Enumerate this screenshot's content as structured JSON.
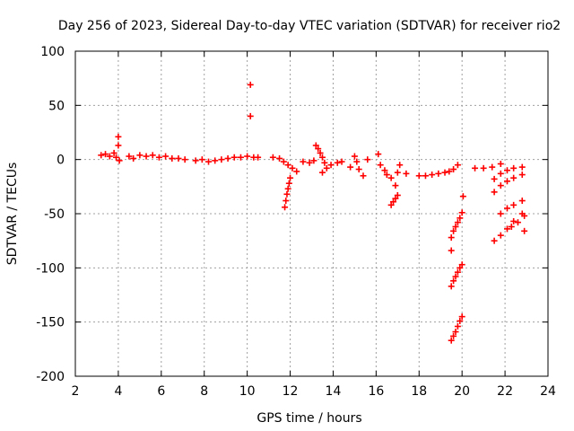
{
  "chart_data": {
    "type": "scatter",
    "title": "Day 256 of 2023, Sidereal Day-to-day VTEC variation (SDTVAR) for receiver rio2",
    "xlabel": "GPS time / hours",
    "ylabel": "SDTVAR / TECUs",
    "xlim": [
      2,
      24
    ],
    "ylim": [
      -200,
      100
    ],
    "xticks": [
      2,
      4,
      6,
      8,
      10,
      12,
      14,
      16,
      18,
      20,
      22,
      24
    ],
    "yticks": [
      100,
      50,
      0,
      -50,
      -100,
      -150,
      -200
    ],
    "grid": true,
    "marker": "+",
    "color": "#ff0000",
    "points": [
      [
        3.2,
        4
      ],
      [
        3.4,
        5
      ],
      [
        3.6,
        3
      ],
      [
        3.8,
        6
      ],
      [
        3.9,
        2
      ],
      [
        4.0,
        21
      ],
      [
        4.0,
        13
      ],
      [
        4.05,
        -1
      ],
      [
        4.5,
        3
      ],
      [
        4.7,
        1
      ],
      [
        5.0,
        4
      ],
      [
        5.3,
        3
      ],
      [
        5.6,
        4
      ],
      [
        5.9,
        2
      ],
      [
        6.2,
        3
      ],
      [
        6.5,
        1
      ],
      [
        6.8,
        1
      ],
      [
        7.1,
        0
      ],
      [
        7.6,
        -1
      ],
      [
        7.9,
        0
      ],
      [
        8.2,
        -2
      ],
      [
        8.5,
        -1
      ],
      [
        8.8,
        0
      ],
      [
        9.1,
        1
      ],
      [
        9.4,
        2
      ],
      [
        9.7,
        2
      ],
      [
        10.0,
        3
      ],
      [
        10.3,
        2
      ],
      [
        10.5,
        2
      ],
      [
        10.15,
        69
      ],
      [
        10.15,
        40
      ],
      [
        11.2,
        2
      ],
      [
        11.5,
        1
      ],
      [
        11.7,
        -2
      ],
      [
        11.9,
        -5
      ],
      [
        12.1,
        -8
      ],
      [
        12.3,
        -11
      ],
      [
        11.75,
        -44
      ],
      [
        11.8,
        -38
      ],
      [
        11.85,
        -32
      ],
      [
        11.9,
        -27
      ],
      [
        11.95,
        -22
      ],
      [
        12.0,
        -17
      ],
      [
        12.6,
        -2
      ],
      [
        12.9,
        -3
      ],
      [
        13.1,
        -1
      ],
      [
        13.2,
        13
      ],
      [
        13.3,
        10
      ],
      [
        13.4,
        6
      ],
      [
        13.5,
        2
      ],
      [
        13.6,
        -3
      ],
      [
        13.5,
        -12
      ],
      [
        13.7,
        -8
      ],
      [
        13.9,
        -5
      ],
      [
        14.2,
        -3
      ],
      [
        14.4,
        -2
      ],
      [
        14.8,
        -7
      ],
      [
        15.0,
        3
      ],
      [
        15.1,
        -2
      ],
      [
        15.2,
        -9
      ],
      [
        15.4,
        -15
      ],
      [
        15.6,
        0
      ],
      [
        16.1,
        5
      ],
      [
        16.2,
        -5
      ],
      [
        16.4,
        -10
      ],
      [
        16.5,
        -14
      ],
      [
        16.7,
        -17
      ],
      [
        16.9,
        -24
      ],
      [
        17.0,
        -12
      ],
      [
        17.1,
        -5
      ],
      [
        16.7,
        -42
      ],
      [
        16.8,
        -39
      ],
      [
        16.9,
        -36
      ],
      [
        17.0,
        -33
      ],
      [
        17.4,
        -13
      ],
      [
        18.0,
        -15
      ],
      [
        18.3,
        -15
      ],
      [
        18.6,
        -14
      ],
      [
        18.9,
        -13
      ],
      [
        19.2,
        -12
      ],
      [
        19.4,
        -11
      ],
      [
        19.6,
        -9
      ],
      [
        19.8,
        -5
      ],
      [
        19.5,
        -72
      ],
      [
        19.6,
        -66
      ],
      [
        19.7,
        -62
      ],
      [
        19.8,
        -58
      ],
      [
        19.9,
        -54
      ],
      [
        20.0,
        -49
      ],
      [
        20.05,
        -34
      ],
      [
        19.5,
        -84
      ],
      [
        19.5,
        -117
      ],
      [
        19.6,
        -112
      ],
      [
        19.7,
        -108
      ],
      [
        19.8,
        -104
      ],
      [
        19.9,
        -100
      ],
      [
        20.0,
        -97
      ],
      [
        19.5,
        -167
      ],
      [
        19.6,
        -163
      ],
      [
        19.7,
        -159
      ],
      [
        19.8,
        -154
      ],
      [
        19.9,
        -149
      ],
      [
        20.0,
        -145
      ],
      [
        20.6,
        -8
      ],
      [
        21.0,
        -8
      ],
      [
        21.4,
        -7
      ],
      [
        21.8,
        -4
      ],
      [
        21.5,
        -30
      ],
      [
        21.8,
        -24
      ],
      [
        22.1,
        -20
      ],
      [
        22.4,
        -17
      ],
      [
        22.8,
        -14
      ],
      [
        21.5,
        -18
      ],
      [
        21.8,
        -13
      ],
      [
        22.1,
        -10
      ],
      [
        22.4,
        -8
      ],
      [
        22.8,
        -7
      ],
      [
        21.5,
        -75
      ],
      [
        21.8,
        -70
      ],
      [
        22.1,
        -64
      ],
      [
        22.4,
        -57
      ],
      [
        22.8,
        -50
      ],
      [
        21.8,
        -50
      ],
      [
        22.1,
        -45
      ],
      [
        22.4,
        -42
      ],
      [
        22.8,
        -38
      ],
      [
        22.3,
        -62
      ],
      [
        22.6,
        -58
      ],
      [
        22.9,
        -52
      ],
      [
        22.9,
        -66
      ]
    ]
  }
}
